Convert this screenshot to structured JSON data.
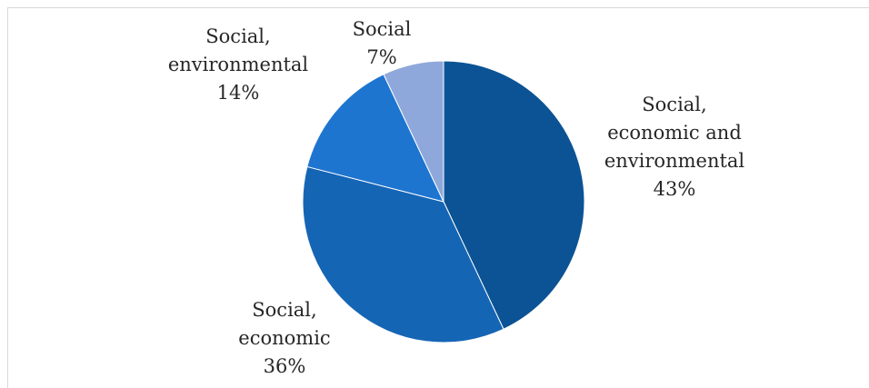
{
  "chart_data": {
    "type": "pie",
    "start_angle_deg": 0,
    "direction": "clockwise",
    "slices": [
      {
        "label_lines": [
          "Social,",
          "economic and",
          "environmental"
        ],
        "value": 43,
        "value_label": "43%",
        "color": "#0B5394"
      },
      {
        "label_lines": [
          "Social,",
          "economic"
        ],
        "value": 36,
        "value_label": "36%",
        "color": "#1565B5"
      },
      {
        "label_lines": [
          "Social,",
          "environmental"
        ],
        "value": 14,
        "value_label": "14%",
        "color": "#1E75D0"
      },
      {
        "label_lines": [
          "Social"
        ],
        "value": 7,
        "value_label": "7%",
        "color": "#8FA8DC"
      }
    ],
    "legend": "none"
  }
}
